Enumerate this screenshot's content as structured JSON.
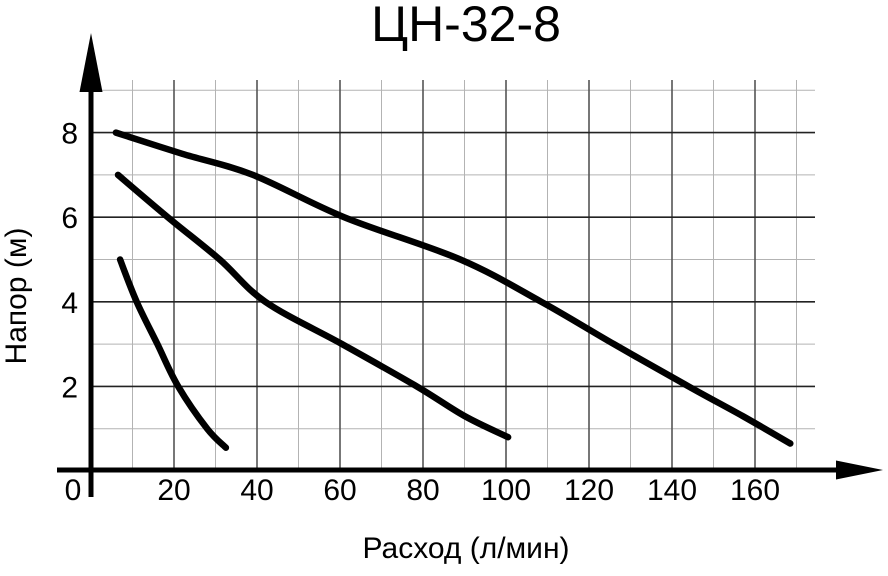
{
  "chart_data": {
    "type": "line",
    "title": "ЦН-32-8",
    "xlabel": "Расход (л/мин)",
    "ylabel": "Напор (м)",
    "xlim": [
      0,
      175
    ],
    "ylim": [
      0,
      9.3
    ],
    "x_ticks": [
      0,
      20,
      40,
      60,
      80,
      100,
      120,
      140,
      160
    ],
    "x_minor_ticks": [
      10,
      30,
      50,
      70,
      90,
      110,
      130,
      150,
      170
    ],
    "y_ticks": [
      2,
      4,
      6,
      8
    ],
    "y_minor_ticks": [
      1,
      3,
      5,
      7,
      9
    ],
    "origin_label": "0",
    "grid": "major+minor",
    "legend": "none",
    "axes_have_arrowheads": true,
    "series": [
      {
        "name": "pump-curve-upper",
        "points": [
          [
            6,
            8.0
          ],
          [
            22,
            7.5
          ],
          [
            39,
            7.0
          ],
          [
            61,
            6.0
          ],
          [
            89,
            5.0
          ],
          [
            108.5,
            4.0
          ],
          [
            126,
            3.0
          ],
          [
            144,
            2.0
          ],
          [
            157,
            1.3
          ],
          [
            168.5,
            0.65
          ]
        ]
      },
      {
        "name": "pump-curve-middle",
        "points": [
          [
            6.5,
            7.0
          ],
          [
            18.5,
            6.0
          ],
          [
            31,
            5.0
          ],
          [
            42,
            4.0
          ],
          [
            60.5,
            3.0
          ],
          [
            78.5,
            2.0
          ],
          [
            90,
            1.3
          ],
          [
            100.5,
            0.8
          ]
        ]
      },
      {
        "name": "pump-curve-lower",
        "points": [
          [
            7,
            5.0
          ],
          [
            11,
            4.0
          ],
          [
            16,
            3.0
          ],
          [
            21,
            2.0
          ],
          [
            28,
            1.0
          ],
          [
            32.5,
            0.55
          ]
        ]
      }
    ],
    "colors": {
      "background": "#ffffff",
      "curve": "#000000",
      "axis": "#000000",
      "text": "#000000",
      "grid_major_h": "#222222",
      "grid_major_v": "#555555",
      "grid_minor": "#b3b3b3"
    }
  }
}
